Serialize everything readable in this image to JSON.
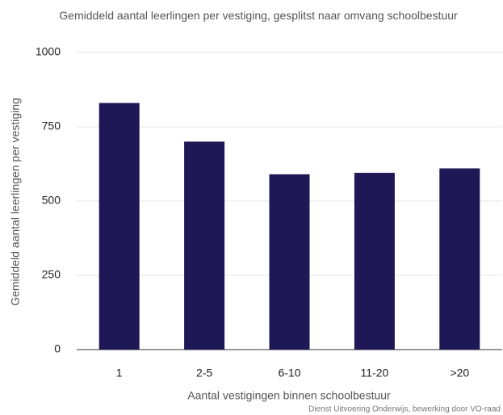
{
  "chart_data": {
    "type": "bar",
    "title": "Gemiddeld aantal leerlingen per vestiging, gesplitst naar omvang schoolbestuur",
    "x_label": "Aantal vestigingen binnen schoolbestuur",
    "y_label": "Gemiddeld aantal leerlingen per vestiging",
    "source": "Dienst Uitvoering Onderwijs, bewerking door VO-raad",
    "categories": [
      "1",
      "2-5",
      "6-10",
      "11-20",
      ">20"
    ],
    "values": [
      830,
      700,
      590,
      595,
      610
    ],
    "color": "#1f1856",
    "ylim": [
      0,
      1000
    ],
    "yticks": [
      0,
      250,
      500,
      750,
      1000
    ],
    "grid": true
  }
}
